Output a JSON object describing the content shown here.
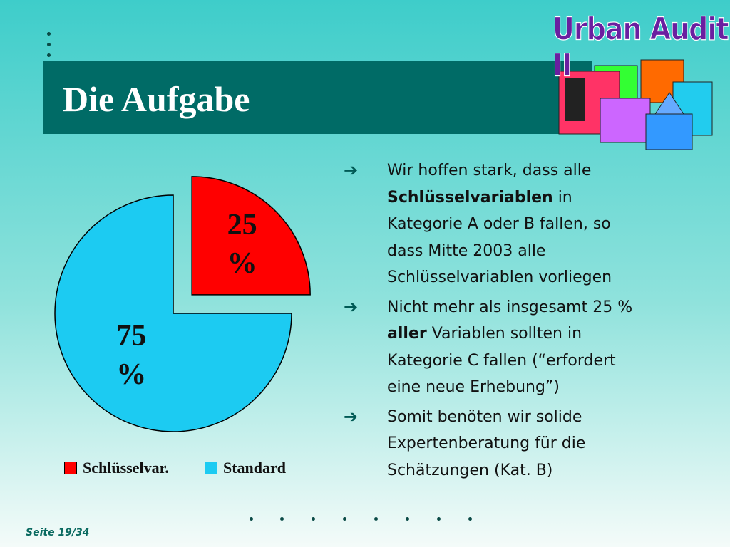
{
  "title": "Die Aufgabe",
  "logo": "Urban Audit II",
  "chart_data": {
    "type": "pie",
    "categories": [
      "Schlüsselvar.",
      "Standard"
    ],
    "values": [
      25,
      75
    ],
    "value_labels": [
      "25 %",
      "75 %"
    ],
    "colors": [
      "#ff0000",
      "#1ccbf2"
    ],
    "explode": [
      true,
      false
    ],
    "legend": "bottom"
  },
  "bullets": [
    [
      {
        "text": "Wir hoffen stark, dass alle "
      },
      {
        "text": "Schlüsselvariablen",
        "bold": true
      },
      {
        "text": " in Kategorie A oder B fallen, so dass Mitte 2003 alle Schlüsselvariablen vorliegen"
      }
    ],
    [
      {
        "text": "Nicht mehr als insgesamt 25 % "
      },
      {
        "text": "aller",
        "bold": true
      },
      {
        "text": " Variablen sollten in Kategorie C fallen (“erfordert eine neue Erhebung”)"
      }
    ],
    [
      {
        "text": "Somit benöten wir solide Expertenberatung für die Schätzungen (Kat. B)"
      }
    ]
  ],
  "footer": "Seite 19/34"
}
